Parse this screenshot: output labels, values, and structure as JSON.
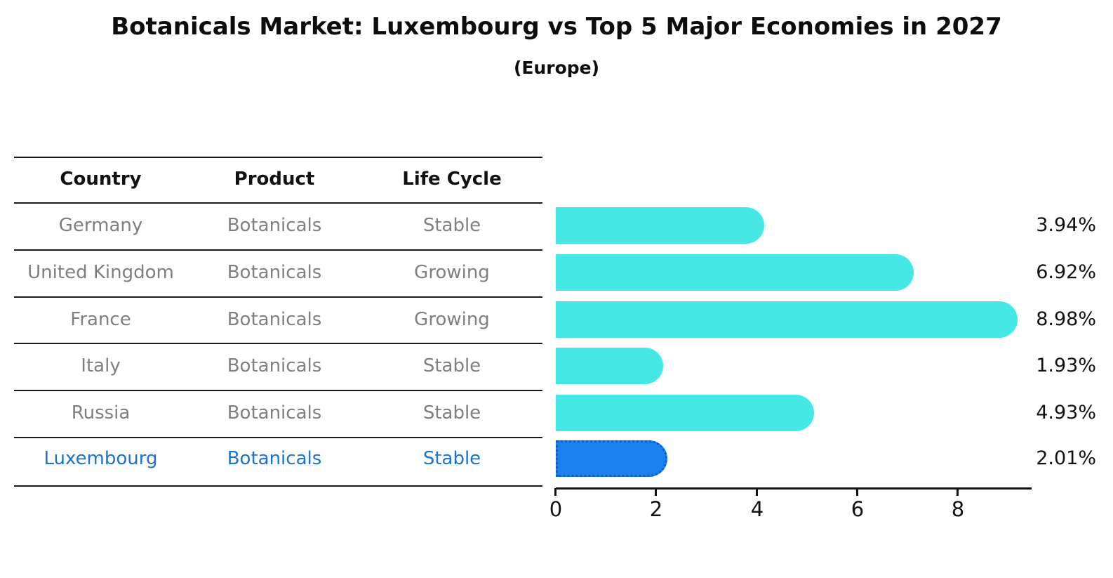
{
  "header": {
    "title": "Botanicals Market: Luxembourg vs Top 5 Major Economies in 2027",
    "subtitle": "(Europe)"
  },
  "table": {
    "columns": [
      "Country",
      "Product",
      "Life Cycle"
    ],
    "rows": [
      {
        "country": "Germany",
        "product": "Botanicals",
        "life_cycle": "Stable",
        "highlight": false
      },
      {
        "country": "United Kingdom",
        "product": "Botanicals",
        "life_cycle": "Growing",
        "highlight": false
      },
      {
        "country": "France",
        "product": "Botanicals",
        "life_cycle": "Growing",
        "highlight": false
      },
      {
        "country": "Italy",
        "product": "Botanicals",
        "life_cycle": "Stable",
        "highlight": false
      },
      {
        "country": "Russia",
        "product": "Botanicals",
        "life_cycle": "Stable",
        "highlight": false
      },
      {
        "country": "Luxembourg",
        "product": "Botanicals",
        "life_cycle": "Stable",
        "highlight": true
      }
    ]
  },
  "chart_data": {
    "type": "bar",
    "orientation": "horizontal",
    "title": "Botanicals Market: Luxembourg vs Top 5 Major Economies in 2027",
    "subtitle": "(Europe)",
    "categories": [
      "Germany",
      "United Kingdom",
      "France",
      "Italy",
      "Russia",
      "Luxembourg"
    ],
    "values": [
      3.94,
      6.92,
      8.98,
      1.93,
      4.93,
      2.01
    ],
    "value_labels": [
      "3.94%",
      "6.92%",
      "8.98%",
      "1.93%",
      "4.93%",
      "2.01%"
    ],
    "xticks": [
      "0",
      "2",
      "4",
      "6",
      "8"
    ],
    "xlim": [
      0,
      9.5
    ],
    "grid": false,
    "legend": false,
    "bar_color": "#45e8e4",
    "highlight_index": 5,
    "highlight_color": "#1a80f0",
    "highlight_border_color": "#0d5ec9",
    "highlight_text_color": "#1a73cf"
  }
}
